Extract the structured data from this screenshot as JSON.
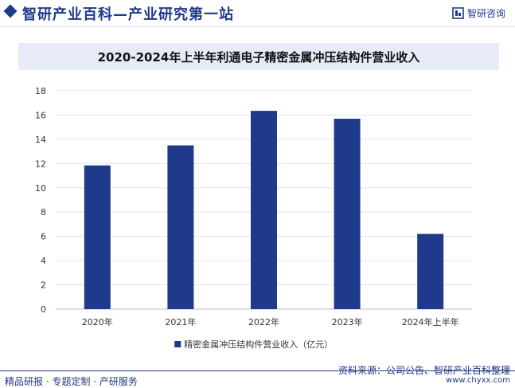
{
  "header": {
    "site_title": "智研产业百科—产业研究第一站",
    "brand_name": "智研咨询",
    "accent_color": "#1f3a8a"
  },
  "chart_data": {
    "type": "bar",
    "title": "2020-2024年上半年利通电子精密金属冲压结构件营业收入",
    "categories": [
      "2020年",
      "2021年",
      "2022年",
      "2023年",
      "2024年上半年"
    ],
    "series": [
      {
        "name": "精密金属冲压结构件营业收入（亿元）",
        "values": [
          11.85,
          13.5,
          16.35,
          15.7,
          6.2
        ],
        "color": "#1f3a8a"
      }
    ],
    "ylim": [
      0,
      18
    ],
    "yticks": [
      0,
      2,
      4,
      6,
      8,
      10,
      12,
      14,
      16,
      18
    ],
    "grid": true,
    "legend_position": "bottom"
  },
  "footer": {
    "left_text": "精品研报 · 专题定制 · 产研服务",
    "source_text": "资料来源：公司公告、智研产业百科整理",
    "url": "www.chyxx.com"
  }
}
